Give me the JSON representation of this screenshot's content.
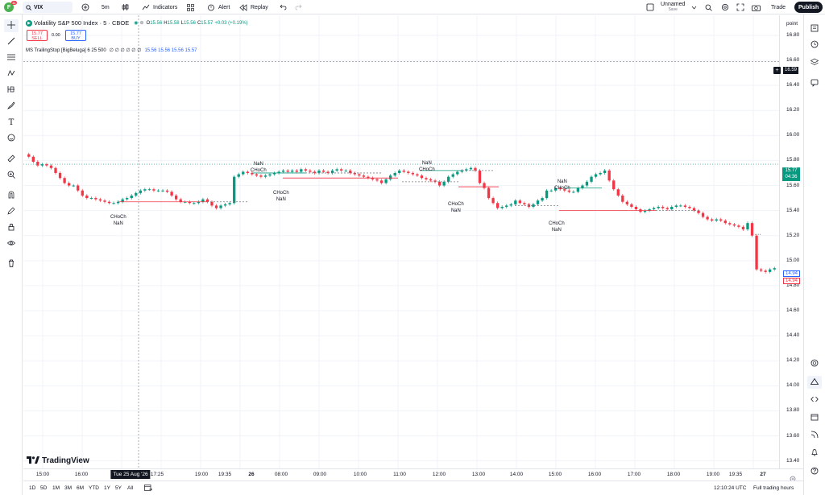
{
  "toolbar": {
    "avatar_letter": "F",
    "notif_count": "11",
    "symbol": "VIX",
    "interval": "5m",
    "indicators_label": "Indicators",
    "alert_label": "Alert",
    "replay_label": "Replay",
    "layout_name": "Unnamed",
    "save_label": "Save",
    "trade_label": "Trade",
    "publish_label": "Publish"
  },
  "legend": {
    "title": "Volatility S&P 500 Index · 5 · CBOE",
    "o_label": "O",
    "o": "15.56",
    "h_label": "H",
    "h": "15.58",
    "l_label": "L",
    "l": "15.56",
    "c_label": "C",
    "c": "15.57",
    "change": "+0.03 (+0.19%)",
    "sell_price": "15.77",
    "sell_label": "SELL",
    "spread": "0.00",
    "buy_price": "15.77",
    "buy_label": "BUY",
    "indicator_line": "MS TrailingStop [BigBeluga] 6 25 500",
    "indicator_dots": "∅ ∅ ∅ ∅ ∅ ∅",
    "indicator_values": "15.56  15.56  15.56  15.57"
  },
  "price_scale": {
    "unit_label": "point",
    "labels": [
      "16.80",
      "16.60",
      "16.40",
      "16.20",
      "16.00",
      "15.80",
      "15.60",
      "15.40",
      "15.20",
      "15.00",
      "14.80",
      "14.60",
      "14.40",
      "14.20",
      "14.00",
      "13.80",
      "13.60",
      "13.40"
    ],
    "crosshair_price": "16.59",
    "last_price": "15.77",
    "countdown": "04:36",
    "tag_a": "14.94",
    "tag_b": "14.94"
  },
  "time_axis": {
    "labels": [
      "15:00",
      "16:00",
      "Tue 25 Aug '26",
      "17:25",
      "19:00",
      "19:35",
      "26",
      "08:00",
      "09:00",
      "10:00",
      "11:00",
      "12:00",
      "13:00",
      "14:00",
      "15:00",
      "16:00",
      "17:00",
      "18:00",
      "19:00",
      "19:35",
      "27"
    ]
  },
  "annotations": [
    "CHoCh\nNaN",
    "NaN\nCHoCh",
    "CHoCh\nNaN",
    "NaN\nCHoCh",
    "CHoCh\nNaN",
    "NaN\nCHoCh",
    "CHoCh\nNaN"
  ],
  "bottom": {
    "ranges": [
      "1D",
      "5D",
      "1M",
      "3M",
      "6M",
      "YTD",
      "1Y",
      "5Y",
      "All"
    ],
    "clock": "12:10:24 UTC",
    "session": "Full trading hours"
  },
  "logo_text": "TradingView",
  "colors": {
    "up": "#089981",
    "down": "#f23645",
    "accent": "#2962ff"
  },
  "chart_data": {
    "type": "candlestick",
    "ylim": [
      13.34,
      16.96
    ],
    "close_series": [
      15.83,
      15.79,
      15.76,
      15.77,
      15.76,
      15.74,
      15.7,
      15.66,
      15.62,
      15.6,
      15.6,
      15.56,
      15.52,
      15.5,
      15.5,
      15.49,
      15.48,
      15.47,
      15.46,
      15.46,
      15.47,
      15.49,
      15.5,
      15.52,
      15.54,
      15.56,
      15.57,
      15.57,
      15.56,
      15.56,
      15.56,
      15.55,
      15.52,
      15.49,
      15.47,
      15.47,
      15.46,
      15.46,
      15.47,
      15.49,
      15.47,
      15.44,
      15.42,
      15.44,
      15.45,
      15.46,
      15.67,
      15.69,
      15.71,
      15.7,
      15.69,
      15.68,
      15.67,
      15.68,
      15.69,
      15.7,
      15.71,
      15.72,
      15.71,
      15.72,
      15.71,
      15.73,
      15.72,
      15.71,
      15.7,
      15.72,
      15.71,
      15.7,
      15.72,
      15.73,
      15.72,
      15.72,
      15.7,
      15.69,
      15.68,
      15.67,
      15.66,
      15.65,
      15.64,
      15.62,
      15.65,
      15.68,
      15.7,
      15.72,
      15.71,
      15.7,
      15.69,
      15.68,
      15.66,
      15.65,
      15.64,
      15.63,
      15.6,
      15.63,
      15.67,
      15.69,
      15.71,
      15.72,
      15.73,
      15.74,
      15.72,
      15.62,
      15.58,
      15.5,
      15.46,
      15.42,
      15.43,
      15.44,
      15.45,
      15.48,
      15.46,
      15.45,
      15.43,
      15.45,
      15.48,
      15.5,
      15.56,
      15.56,
      15.58,
      15.57,
      15.56,
      15.55,
      15.55,
      15.58,
      15.6,
      15.63,
      15.67,
      15.69,
      15.7,
      15.72,
      15.64,
      15.57,
      15.52,
      15.47,
      15.45,
      15.43,
      15.41,
      15.39,
      15.4,
      15.41,
      15.42,
      15.43,
      15.42,
      15.41,
      15.43,
      15.44,
      15.44,
      15.43,
      15.42,
      15.4,
      15.38,
      15.35,
      15.33,
      15.32,
      15.33,
      15.32,
      15.3,
      15.29,
      15.28,
      15.27,
      15.25,
      15.3,
      15.2,
      14.93,
      14.92,
      14.91,
      14.93,
      14.94
    ]
  }
}
